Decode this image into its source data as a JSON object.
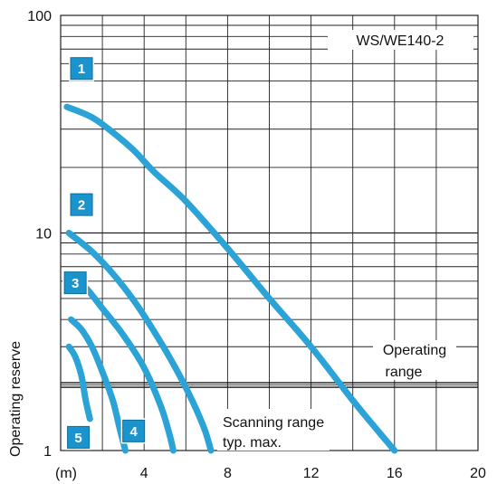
{
  "chart_data": {
    "type": "line",
    "title": "WS/WE140-2",
    "ylabel": "Operating reserve",
    "xunit": "(m)",
    "yscale": "log",
    "xlim": [
      0,
      20
    ],
    "ylim": [
      1,
      100
    ],
    "x_ticks": [
      "4",
      "8",
      "12",
      "16",
      "20"
    ],
    "y_ticks": [
      "1",
      "10",
      "100"
    ],
    "threshold": 2,
    "annotations": {
      "operating_range": [
        "Operating",
        "range"
      ],
      "scanning_range": [
        "Scanning range",
        "typ. max."
      ]
    },
    "colors": {
      "curve": "#2ba3d6",
      "badge": "#1b93cc",
      "grid": "#222222"
    },
    "series": [
      {
        "label": "1",
        "x": [
          0.3,
          1.5,
          2.5,
          3.5,
          4.5,
          6,
          8,
          10,
          12,
          14,
          15,
          16
        ],
        "y": [
          38,
          34,
          29,
          24,
          19,
          14,
          8.5,
          5,
          3,
          1.7,
          1.3,
          1
        ]
      },
      {
        "label": "2",
        "x": [
          0.4,
          1.5,
          2.5,
          3.5,
          4.5,
          5.5,
          6.3,
          6.9,
          7.2
        ],
        "y": [
          10,
          8.2,
          6.5,
          4.9,
          3.5,
          2.4,
          1.7,
          1.25,
          1
        ]
      },
      {
        "label": "3",
        "x": [
          0.4,
          1.2,
          2,
          3,
          4,
          4.8,
          5.2,
          5.4
        ],
        "y": [
          6.5,
          5.6,
          4.5,
          3.4,
          2.4,
          1.6,
          1.2,
          1
        ]
      },
      {
        "label": "4",
        "x": [
          0.5,
          1,
          1.5,
          2,
          2.5,
          2.8,
          3.1
        ],
        "y": [
          4,
          3.6,
          3,
          2.3,
          1.7,
          1.3,
          1
        ]
      },
      {
        "label": "5",
        "x": [
          0.4,
          0.7,
          1,
          1.2,
          1.4
        ],
        "y": [
          3,
          2.7,
          2.2,
          1.7,
          1.4
        ]
      }
    ]
  }
}
